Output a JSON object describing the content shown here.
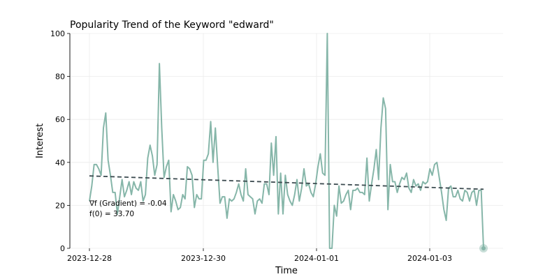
{
  "chart_data": {
    "type": "line",
    "title": "Popularity Trend of the Keyword \"edward\"",
    "xlabel": "Time",
    "ylabel": "Interest",
    "ylim": [
      0,
      100
    ],
    "yticks": [
      0,
      20,
      40,
      60,
      80,
      100
    ],
    "xtick_labels": [
      "2023-12-28",
      "2023-12-30",
      "2024-01-01",
      "2024-01-03"
    ],
    "grid": true,
    "colors": {
      "series": "#86b6a9",
      "trend": "#3b4a4f",
      "marker": "#86b6a9"
    },
    "series": [
      {
        "values": [
          22,
          29,
          39,
          39,
          37,
          34,
          56,
          63,
          41,
          34,
          26,
          26,
          16,
          24,
          32,
          24,
          27,
          31,
          25,
          31,
          28,
          27,
          31,
          22,
          25,
          42,
          48,
          43,
          34,
          39,
          86,
          56,
          33,
          38,
          41,
          17,
          25,
          22,
          18,
          19,
          25,
          23,
          38,
          37,
          34,
          19,
          25,
          23,
          23,
          41,
          41,
          44,
          59,
          40,
          56,
          38,
          21,
          24,
          24,
          14,
          23,
          22,
          23,
          26,
          30,
          25,
          22,
          37,
          25,
          24,
          23,
          16,
          22,
          23,
          21,
          30,
          30,
          25,
          49,
          34,
          52,
          16,
          35,
          16,
          34,
          25,
          22,
          20,
          25,
          32,
          22,
          28,
          37,
          29,
          30,
          26,
          24,
          30,
          38,
          44,
          35,
          34,
          100,
          0,
          0,
          20,
          15,
          29,
          21,
          22,
          25,
          27,
          18,
          27,
          27,
          28,
          26,
          26,
          25,
          42,
          22,
          30,
          37,
          46,
          32,
          56,
          70,
          65,
          18,
          39,
          31,
          31,
          26,
          30,
          33,
          32,
          35,
          28,
          26,
          32,
          29,
          30,
          27,
          31,
          30,
          31,
          37,
          34,
          39,
          40,
          33,
          26,
          18,
          13,
          28,
          29,
          24,
          24,
          27,
          23,
          22,
          27,
          26,
          22,
          26,
          27,
          20,
          27,
          27,
          0
        ]
      }
    ],
    "trend_line": {
      "start": 33.7,
      "end": 27.5
    },
    "annotations": [
      "∇f (Gradient) = -0.04",
      "f(0) = 33.70"
    ]
  }
}
